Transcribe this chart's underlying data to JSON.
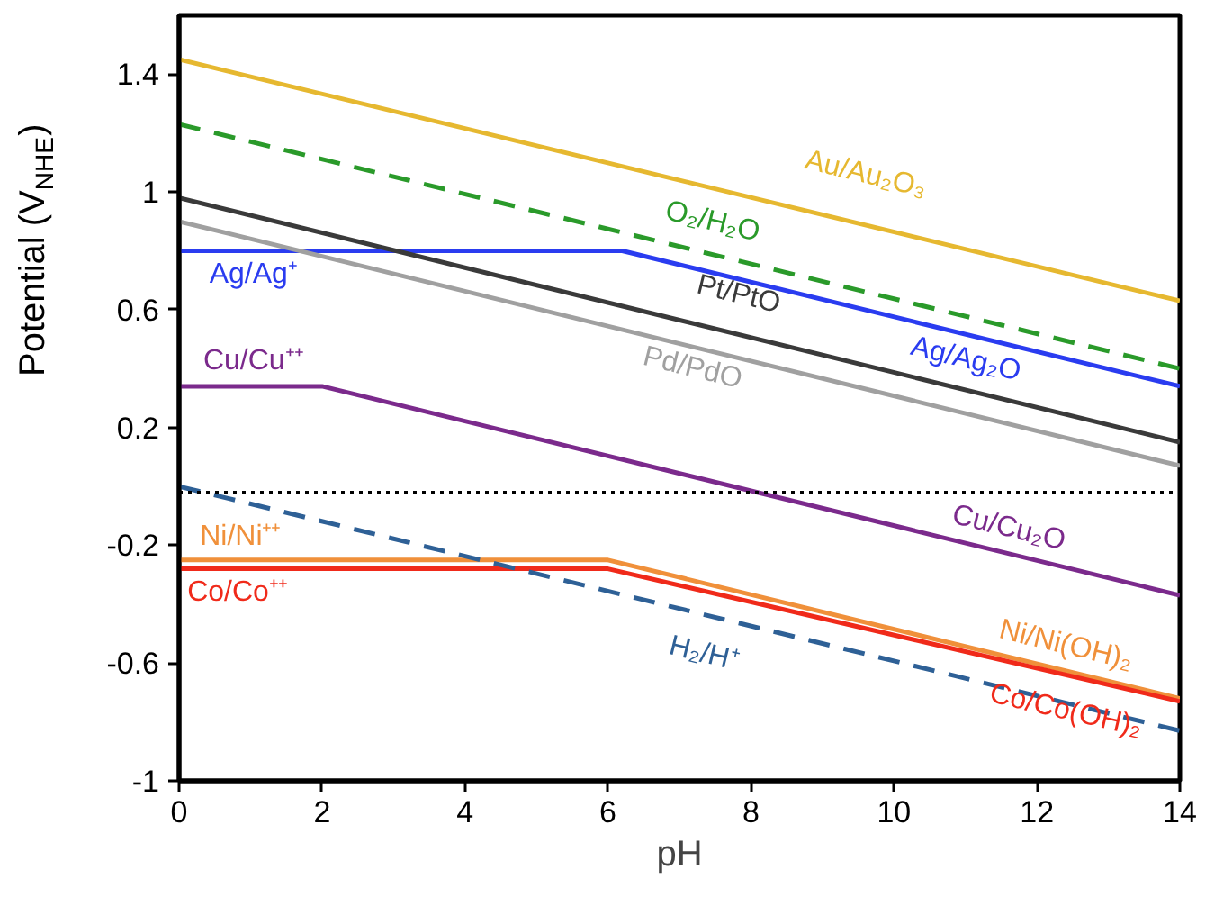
{
  "chart_data": {
    "type": "line",
    "xlabel": "pH",
    "ylabel": "Potential (V$_{NHE}$)",
    "xlim": [
      0,
      14
    ],
    "ylim": [
      -1,
      1.6
    ],
    "xticks": [
      0,
      2,
      4,
      6,
      8,
      10,
      12,
      14
    ],
    "yticks": [
      -1,
      -0.6,
      -0.2,
      0.2,
      0.6,
      1,
      1.4
    ],
    "grid": false,
    "marker": "none",
    "series": [
      {
        "color": "#e6b830",
        "line_style": "solid",
        "x": [
          0,
          14
        ],
        "values": [
          1.45,
          0.63
        ]
      },
      {
        "color": "#2a9a2a",
        "line_style": "dashed",
        "x": [
          0,
          14
        ],
        "values": [
          1.23,
          0.4
        ]
      },
      {
        "color": "#2a3cf0",
        "line_style": "solid",
        "x": [
          0,
          6.2,
          14
        ],
        "values": [
          0.8,
          0.8,
          0.34
        ]
      },
      {
        "color": "#3a3a3a",
        "line_style": "solid",
        "x": [
          0,
          14
        ],
        "values": [
          0.98,
          0.15
        ]
      },
      {
        "color": "#a0a0a0",
        "line_style": "solid",
        "x": [
          0,
          14
        ],
        "values": [
          0.9,
          0.07
        ]
      },
      {
        "color": "#7b2a8c",
        "line_style": "solid",
        "x": [
          0,
          2,
          14
        ],
        "values": [
          0.34,
          0.34,
          -0.37
        ]
      },
      {
        "color": "#f0903a",
        "line_style": "solid",
        "x": [
          0,
          6,
          14
        ],
        "values": [
          -0.25,
          -0.25,
          -0.72
        ]
      },
      {
        "color": "#f02a1a",
        "line_style": "solid",
        "x": [
          0,
          6,
          14
        ],
        "values": [
          -0.28,
          -0.28,
          -0.73
        ]
      },
      {
        "color": "#2e6096",
        "line_style": "dashed",
        "x": [
          0,
          14
        ],
        "values": [
          0.0,
          -0.83
        ]
      }
    ],
    "annotations": [
      "Au/Au₂O₃",
      "O₂/H₂O",
      "Ag/Ag⁺",
      "Ag/Ag₂O",
      "Pt/PtO",
      "Pd/PdO",
      "Cu/Cu⁺⁺",
      "Cu/Cu₂O",
      "Ni/Ni⁺⁺",
      "Co/Co⁺⁺",
      "Ni/Ni(OH)₂",
      "Co/Co(OH)₂",
      "H₂/H⁺"
    ],
    "ref_lines": [
      {
        "axis": "y",
        "value": -0.02,
        "color": "#000000",
        "line_style": "dotted"
      }
    ]
  }
}
